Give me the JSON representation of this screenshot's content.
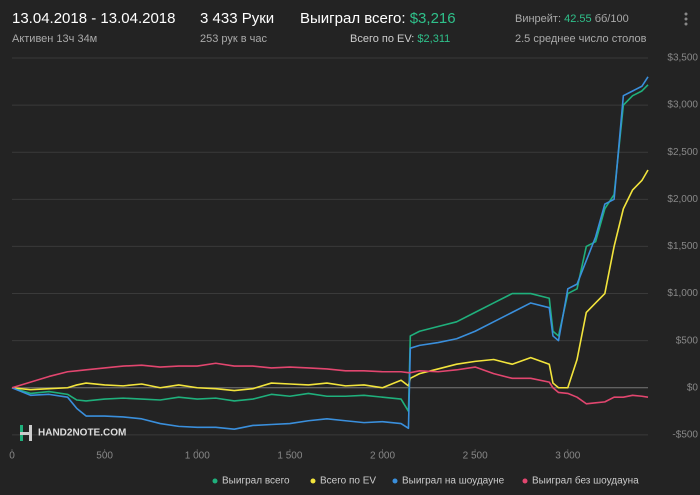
{
  "header": {
    "date_range": "13.04.2018 - 13.04.2018",
    "active": "Активен 13ч 34м",
    "hands": "3 433 Руки",
    "hands_per_hour": "253 рук в час",
    "won_label": "Выиграл всего:",
    "won_value": "$3,216",
    "ev_label": "Всего по EV:",
    "ev_value": "$2,311",
    "winrate_label": "Винрейт:",
    "winrate_value": "42.55",
    "winrate_unit": "бб/100",
    "tables": "2.5 среднее число столов",
    "logo": "HAND2NOTE.COM"
  },
  "chart_data": {
    "type": "line",
    "x": [
      0,
      100,
      200,
      300,
      350,
      400,
      500,
      600,
      700,
      800,
      900,
      1000,
      1100,
      1200,
      1300,
      1400,
      1500,
      1600,
      1700,
      1800,
      1900,
      2000,
      2100,
      2140,
      2150,
      2200,
      2300,
      2400,
      2500,
      2600,
      2700,
      2800,
      2900,
      2920,
      2950,
      3000,
      3050,
      3100,
      3150,
      3200,
      3250,
      3300,
      3350,
      3400,
      3433
    ],
    "series": [
      {
        "name": "Выиграл всего",
        "color": "#1fb07c",
        "values": [
          0,
          -60,
          -40,
          -70,
          -130,
          -140,
          -120,
          -110,
          -120,
          -130,
          -100,
          -120,
          -110,
          -140,
          -120,
          -70,
          -90,
          -60,
          -90,
          -90,
          -80,
          -100,
          -120,
          -250,
          550,
          600,
          650,
          700,
          800,
          900,
          1000,
          1000,
          950,
          600,
          550,
          1000,
          1050,
          1500,
          1550,
          1900,
          2050,
          3000,
          3100,
          3150,
          3216
        ]
      },
      {
        "name": "Всего по EV",
        "color": "#f2e43c",
        "values": [
          0,
          -20,
          -10,
          0,
          30,
          50,
          30,
          20,
          40,
          0,
          30,
          0,
          -10,
          -30,
          -10,
          50,
          40,
          30,
          50,
          20,
          30,
          0,
          80,
          20,
          100,
          150,
          200,
          250,
          280,
          300,
          250,
          320,
          250,
          50,
          0,
          0,
          300,
          800,
          900,
          1000,
          1500,
          1900,
          2100,
          2200,
          2311
        ]
      },
      {
        "name": "Выиграл на шоудауне",
        "color": "#3a8fdc",
        "values": [
          0,
          -80,
          -70,
          -100,
          -220,
          -300,
          -300,
          -310,
          -330,
          -380,
          -410,
          -420,
          -420,
          -440,
          -400,
          -390,
          -380,
          -350,
          -330,
          -350,
          -370,
          -360,
          -380,
          -430,
          420,
          450,
          480,
          520,
          600,
          700,
          800,
          900,
          850,
          550,
          500,
          1050,
          1100,
          1350,
          1600,
          1950,
          2000,
          3100,
          3150,
          3200,
          3300
        ]
      },
      {
        "name": "Выиграл без шоудауна",
        "color": "#e2466f",
        "values": [
          0,
          60,
          120,
          170,
          180,
          190,
          210,
          230,
          240,
          220,
          230,
          230,
          260,
          230,
          230,
          210,
          220,
          210,
          200,
          180,
          180,
          170,
          170,
          160,
          160,
          180,
          170,
          190,
          220,
          150,
          100,
          100,
          60,
          0,
          -50,
          -60,
          -100,
          -170,
          -160,
          -150,
          -100,
          -100,
          -80,
          -90,
          -100
        ]
      }
    ],
    "xlim": [
      0,
      3433
    ],
    "xticks": [
      0,
      500,
      {
        "value": 1000,
        "label": "1 000"
      },
      {
        "value": 1500,
        "label": "1 500"
      },
      {
        "value": 2000,
        "label": "2 000"
      },
      {
        "value": 2500,
        "label": "2 500"
      },
      {
        "value": 3000,
        "label": "3 000"
      }
    ],
    "ylim": [
      -650,
      3500
    ],
    "yticks": [
      {
        "value": -500,
        "label": "-$500"
      },
      {
        "value": 0,
        "label": "$0"
      },
      {
        "value": 500,
        "label": "$500"
      },
      {
        "value": 1000,
        "label": "$1,000"
      },
      {
        "value": 1500,
        "label": "$1,500"
      },
      {
        "value": 2000,
        "label": "$2,000"
      },
      {
        "value": 2500,
        "label": "$2,500"
      },
      {
        "value": 3000,
        "label": "$3,000"
      },
      {
        "value": 3500,
        "label": "$3,500"
      }
    ],
    "grid": true
  }
}
